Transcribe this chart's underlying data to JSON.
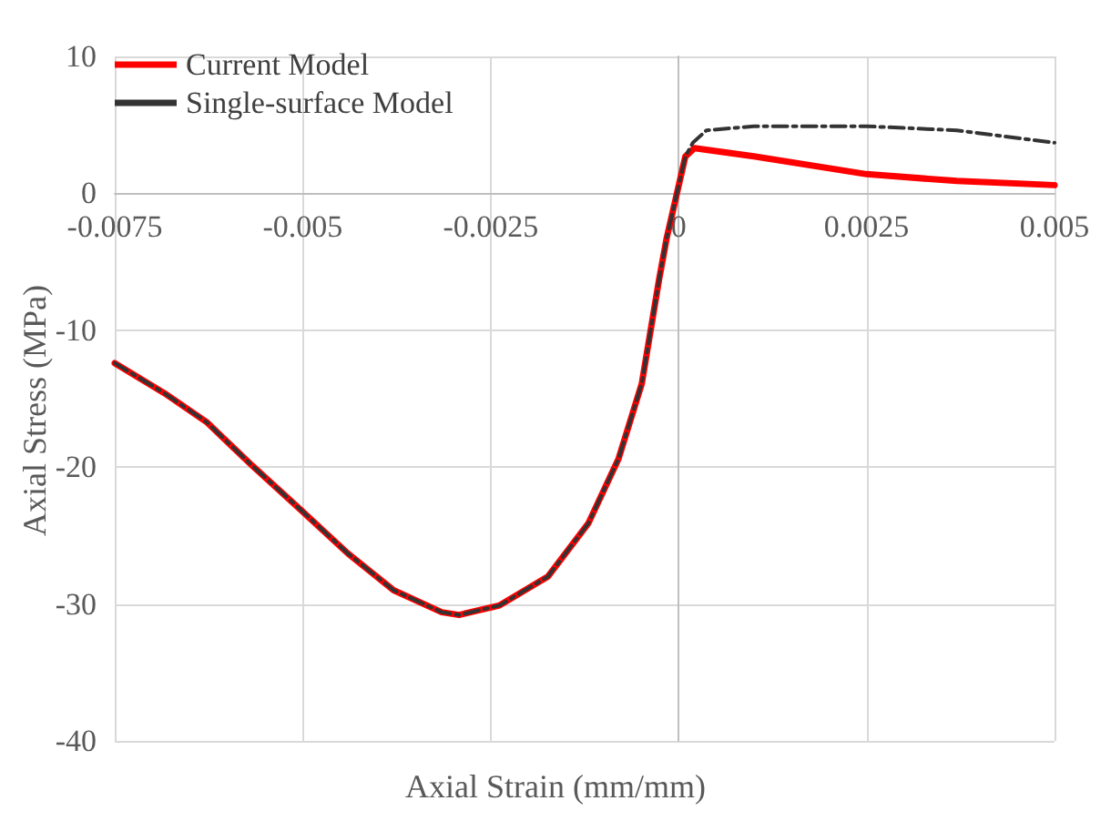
{
  "chart_data": {
    "type": "line",
    "xlabel": "Axial Strain (mm/mm)",
    "ylabel": "Axial Stress (MPa)",
    "xlim": [
      -0.0075,
      0.005
    ],
    "xticks": [
      -0.0075,
      -0.005,
      -0.0025,
      0,
      0.0025,
      0.005
    ],
    "ylim": [
      -40,
      10
    ],
    "yticks": [
      -40,
      -30,
      -20,
      -10,
      0,
      10
    ],
    "grid": true,
    "legend": "top left",
    "marker": "none",
    "series": [
      {
        "name": "Current Model",
        "color": "#ff0000",
        "line_style": "solid",
        "x": [
          -0.0075,
          -0.00684,
          -0.00628,
          -0.00567,
          -0.00503,
          -0.0044,
          -0.00379,
          -0.00315,
          -0.00292,
          -0.00238,
          -0.00174,
          -0.0012,
          -0.0008,
          -0.00049,
          -0.00026,
          -0.00016,
          9e-05,
          0.00021,
          0.001,
          0.0025,
          0.0037,
          0.005
        ],
        "values": [
          -12.4,
          -14.6,
          -16.7,
          -19.9,
          -23.1,
          -26.3,
          -29.0,
          -30.6,
          -30.8,
          -30.1,
          -28.0,
          -24.1,
          -19.4,
          -13.9,
          -6.3,
          -3.3,
          2.7,
          3.3,
          2.7,
          1.4,
          0.9,
          0.6
        ]
      },
      {
        "name": "Single-surface Model",
        "color": "#333333",
        "line_style": "dashed",
        "x": [
          -0.0075,
          -0.00684,
          -0.00628,
          -0.00567,
          -0.00503,
          -0.0044,
          -0.00379,
          -0.00315,
          -0.00292,
          -0.00238,
          -0.00174,
          -0.0012,
          -0.0008,
          -0.00049,
          -0.00026,
          -0.00016,
          9e-05,
          0.00019,
          0.00037,
          0.001,
          0.0025,
          0.0037,
          0.005
        ],
        "values": [
          -12.4,
          -14.6,
          -16.7,
          -19.9,
          -23.1,
          -26.3,
          -29.0,
          -30.6,
          -30.8,
          -30.1,
          -28.0,
          -24.1,
          -19.4,
          -13.9,
          -6.3,
          -3.3,
          2.7,
          3.7,
          4.6,
          4.9,
          4.9,
          4.6,
          3.7
        ]
      }
    ]
  }
}
